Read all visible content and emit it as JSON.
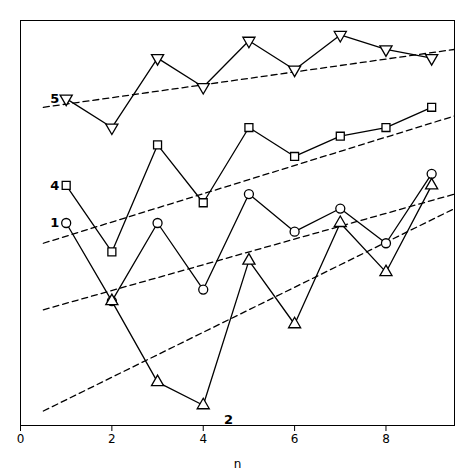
{
  "chart_data": {
    "type": "line",
    "xlabel": "n",
    "xlim": [
      0,
      9.5
    ],
    "xticks": [
      0,
      2,
      4,
      6,
      8
    ],
    "ylim": [
      -0.5,
      13.5
    ],
    "tick_labels": "x",
    "grid": false,
    "series": [
      {
        "name": "1",
        "color": "black",
        "marker": "circle",
        "line_style": "solid",
        "x": [
          1,
          2,
          3,
          4,
          5,
          6,
          7,
          8,
          9
        ],
        "values": [
          6.5,
          3.8,
          6.5,
          4.2,
          7.5,
          6.2,
          7.0,
          5.8,
          8.2
        ],
        "trend": {
          "color": "black",
          "line_style": "dashed",
          "x": [
            0.5,
            9.5
          ],
          "values": [
            3.5,
            7.5
          ]
        }
      },
      {
        "name": "2",
        "color": "black",
        "marker": "triangle-up",
        "line_style": "solid",
        "x": [
          2,
          3,
          4,
          5,
          6,
          7,
          8,
          9
        ],
        "values": [
          3.8,
          1.0,
          0.2,
          5.2,
          3.0,
          6.5,
          4.8,
          7.8
        ],
        "trend": {
          "color": "black",
          "line_style": "dashed",
          "x": [
            0.5,
            9.5
          ],
          "values": [
            0.0,
            7.0
          ]
        }
      },
      {
        "name": "4",
        "color": "black",
        "marker": "square",
        "line_style": "solid",
        "x": [
          1,
          2,
          3,
          4,
          5,
          6,
          7,
          8,
          9
        ],
        "values": [
          7.8,
          5.5,
          9.2,
          7.2,
          9.8,
          8.8,
          9.5,
          9.8,
          10.5
        ],
        "trend": {
          "color": "black",
          "line_style": "dashed",
          "x": [
            0.5,
            9.5
          ],
          "values": [
            5.8,
            10.2
          ]
        }
      },
      {
        "name": "5",
        "color": "black",
        "marker": "triangle-down",
        "line_style": "solid",
        "x": [
          1,
          2,
          3,
          4,
          5,
          6,
          7,
          8,
          9
        ],
        "values": [
          10.8,
          9.8,
          12.2,
          11.2,
          12.8,
          11.8,
          13.0,
          12.5,
          12.2
        ],
        "trend": {
          "color": "black",
          "line_style": "dashed",
          "x": [
            0.5,
            9.5
          ],
          "values": [
            10.5,
            12.5
          ]
        }
      }
    ],
    "annotations": [
      {
        "text": "1",
        "x": 0.85,
        "y": 6.5
      },
      {
        "text": "2",
        "x": 4.65,
        "y": -0.3
      },
      {
        "text": "4",
        "x": 0.85,
        "y": 7.8
      },
      {
        "text": "5",
        "x": 0.85,
        "y": 10.8
      }
    ]
  }
}
